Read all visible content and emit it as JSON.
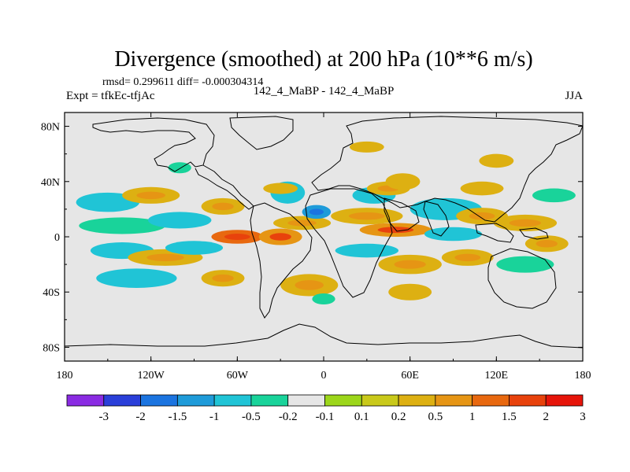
{
  "chart_data": {
    "type": "heatmap",
    "title": "Divergence (smoothed) at 200 hPa (10**6 m/s)",
    "stats_line": "rmsd= 0.299611 diff= -0.000304314",
    "left_label": "Expt = tfkEc-tfjAc",
    "center_label": "142_4_MaBP - 142_4_MaBP",
    "right_label": "JJA",
    "xlim": [
      -180,
      180
    ],
    "ylim": [
      -90,
      90
    ],
    "x_ticks": [
      {
        "value": -180,
        "label": "180"
      },
      {
        "value": -120,
        "label": "120W"
      },
      {
        "value": -60,
        "label": "60W"
      },
      {
        "value": 0,
        "label": "0"
      },
      {
        "value": 60,
        "label": "60E"
      },
      {
        "value": 120,
        "label": "120E"
      },
      {
        "value": 180,
        "label": "180"
      }
    ],
    "y_ticks": [
      {
        "value": 80,
        "label": "80N"
      },
      {
        "value": 40,
        "label": "40N"
      },
      {
        "value": 0,
        "label": "0"
      },
      {
        "value": -40,
        "label": "40S"
      },
      {
        "value": -80,
        "label": "80S"
      }
    ],
    "colorbar": {
      "boundaries": [
        "-3",
        "-2",
        "-1.5",
        "-1",
        "-0.5",
        "-0.2",
        "-0.1",
        "0.1",
        "0.2",
        "0.5",
        "1",
        "1.5",
        "2",
        "3"
      ],
      "colors": [
        "#8a2be2",
        "#2a3fd9",
        "#1b74e0",
        "#1e9bd9",
        "#20c4d6",
        "#19d39a",
        "#e6e6e6",
        "#9cd61a",
        "#c9c91a",
        "#ddb012",
        "#e69514",
        "#e8680f",
        "#e8420c",
        "#e6140a"
      ]
    },
    "field_blobs": [
      {
        "lon": -150,
        "lat": 25,
        "rx": 22,
        "ry": 7,
        "value": -0.5
      },
      {
        "lon": -120,
        "lat": 30,
        "rx": 20,
        "ry": 6,
        "value": 0.5
      },
      {
        "lon": -140,
        "lat": 8,
        "rx": 30,
        "ry": 6,
        "value": -0.3
      },
      {
        "lon": -100,
        "lat": 12,
        "rx": 22,
        "ry": 6,
        "value": -0.5
      },
      {
        "lon": -70,
        "lat": 22,
        "rx": 15,
        "ry": 6,
        "value": 0.5
      },
      {
        "lon": -60,
        "lat": 0,
        "rx": 18,
        "ry": 5,
        "value": 1.2
      },
      {
        "lon": -140,
        "lat": -10,
        "rx": 22,
        "ry": 6,
        "value": -0.5
      },
      {
        "lon": -130,
        "lat": -30,
        "rx": 28,
        "ry": 7,
        "value": -0.5
      },
      {
        "lon": -110,
        "lat": -15,
        "rx": 26,
        "ry": 6,
        "value": 0.5
      },
      {
        "lon": -90,
        "lat": -8,
        "rx": 20,
        "ry": 5,
        "value": -0.5
      },
      {
        "lon": -70,
        "lat": -30,
        "rx": 15,
        "ry": 6,
        "value": 0.5
      },
      {
        "lon": -30,
        "lat": 0,
        "rx": 15,
        "ry": 6,
        "value": 1.0
      },
      {
        "lon": -15,
        "lat": 10,
        "rx": 20,
        "ry": 5,
        "value": 0.5
      },
      {
        "lon": -5,
        "lat": 18,
        "rx": 10,
        "ry": 5,
        "value": -1.0
      },
      {
        "lon": -25,
        "lat": 32,
        "rx": 12,
        "ry": 8,
        "value": -0.5
      },
      {
        "lon": -30,
        "lat": 35,
        "rx": 12,
        "ry": 4,
        "value": 0.3
      },
      {
        "lon": -10,
        "lat": -35,
        "rx": 20,
        "ry": 8,
        "value": 0.5
      },
      {
        "lon": 30,
        "lat": 15,
        "rx": 25,
        "ry": 6,
        "value": 0.5
      },
      {
        "lon": 50,
        "lat": 5,
        "rx": 25,
        "ry": 5,
        "value": 1.0
      },
      {
        "lon": 35,
        "lat": 30,
        "rx": 15,
        "ry": 6,
        "value": -0.5
      },
      {
        "lon": 45,
        "lat": 35,
        "rx": 15,
        "ry": 5,
        "value": 0.5
      },
      {
        "lon": 55,
        "lat": 40,
        "rx": 12,
        "ry": 6,
        "value": 0.3
      },
      {
        "lon": 85,
        "lat": 20,
        "rx": 25,
        "ry": 8,
        "value": -0.5
      },
      {
        "lon": 110,
        "lat": 15,
        "rx": 18,
        "ry": 6,
        "value": 0.5
      },
      {
        "lon": 140,
        "lat": 10,
        "rx": 22,
        "ry": 6,
        "value": 0.5
      },
      {
        "lon": 90,
        "lat": 2,
        "rx": 20,
        "ry": 5,
        "value": -0.5
      },
      {
        "lon": 30,
        "lat": -10,
        "rx": 22,
        "ry": 5,
        "value": -0.5
      },
      {
        "lon": 60,
        "lat": -20,
        "rx": 22,
        "ry": 7,
        "value": 0.5
      },
      {
        "lon": 100,
        "lat": -15,
        "rx": 18,
        "ry": 6,
        "value": 0.5
      },
      {
        "lon": 140,
        "lat": -20,
        "rx": 20,
        "ry": 6,
        "value": -0.3
      },
      {
        "lon": 155,
        "lat": -5,
        "rx": 15,
        "ry": 6,
        "value": 0.5
      },
      {
        "lon": 160,
        "lat": 30,
        "rx": 15,
        "ry": 5,
        "value": -0.3
      },
      {
        "lon": 110,
        "lat": 35,
        "rx": 15,
        "ry": 5,
        "value": 0.3
      },
      {
        "lon": 30,
        "lat": 65,
        "rx": 12,
        "ry": 4,
        "value": 0.3
      },
      {
        "lon": 120,
        "lat": 55,
        "rx": 12,
        "ry": 5,
        "value": 0.3
      },
      {
        "lon": -100,
        "lat": 50,
        "rx": 8,
        "ry": 4,
        "value": -0.3
      },
      {
        "lon": 60,
        "lat": -40,
        "rx": 15,
        "ry": 6,
        "value": 0.3
      },
      {
        "lon": 0,
        "lat": -45,
        "rx": 8,
        "ry": 4,
        "value": -0.3
      }
    ]
  }
}
